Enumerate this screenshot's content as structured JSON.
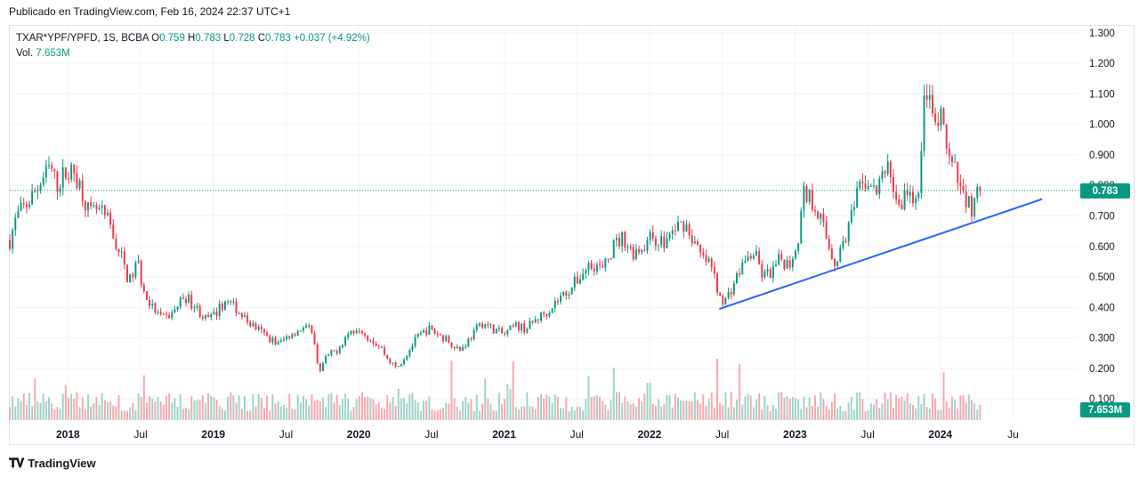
{
  "header": {
    "published": "Publicado en TradingView.com, Feb 16, 2024 22:37 UTC+1"
  },
  "legend": {
    "symbol": "TXAR*YPF/YPFD, 1S, BCBA",
    "open_label": "O",
    "open": "0.759",
    "high_label": "H",
    "high": "0.783",
    "low_label": "L",
    "low": "0.728",
    "close_label": "C",
    "close": "0.783",
    "change": "+0.037 (+4.92%)",
    "volume_label": "Vol.",
    "volume": "7.653M"
  },
  "footer": {
    "logo_text": "TradingView"
  },
  "colors": {
    "up": "#089981",
    "down": "#f23645",
    "trendline": "#2962ff",
    "grid": "#f0f3fa"
  },
  "chart_data": {
    "type": "candlestick",
    "interval": "1 week",
    "y_ticks": [
      "1.300",
      "1.200",
      "1.100",
      "1.000",
      "0.900",
      "0.800",
      "0.700",
      "0.600",
      "0.500",
      "0.400",
      "0.300",
      "0.200",
      "0.100"
    ],
    "x_ticks": [
      {
        "label": "2018",
        "date": 2018.0,
        "bold": true
      },
      {
        "label": "Jul",
        "date": 2018.5,
        "bold": false
      },
      {
        "label": "2019",
        "date": 2019.0,
        "bold": true
      },
      {
        "label": "Jul",
        "date": 2019.5,
        "bold": false
      },
      {
        "label": "2020",
        "date": 2020.0,
        "bold": true
      },
      {
        "label": "Jul",
        "date": 2020.5,
        "bold": false
      },
      {
        "label": "2021",
        "date": 2021.0,
        "bold": true
      },
      {
        "label": "Jul",
        "date": 2021.5,
        "bold": false
      },
      {
        "label": "2022",
        "date": 2022.0,
        "bold": true
      },
      {
        "label": "Jul",
        "date": 2022.5,
        "bold": false
      },
      {
        "label": "2023",
        "date": 2023.0,
        "bold": true
      },
      {
        "label": "Jul",
        "date": 2023.5,
        "bold": false
      },
      {
        "label": "2024",
        "date": 2024.0,
        "bold": true
      },
      {
        "label": "Ju",
        "date": 2024.5,
        "bold": false
      }
    ],
    "x_range": [
      2017.6,
      2024.95
    ],
    "y_range": [
      0.08,
      1.32
    ],
    "last_price": 0.783,
    "last_price_label": "0.783",
    "last_volume_label": "7.653M",
    "price_path": [
      [
        2017.6,
        0.62
      ],
      [
        2017.65,
        0.7
      ],
      [
        2017.72,
        0.74
      ],
      [
        2017.8,
        0.8
      ],
      [
        2017.88,
        0.86
      ],
      [
        2017.92,
        0.8
      ],
      [
        2017.98,
        0.84
      ],
      [
        2018.05,
        0.84
      ],
      [
        2018.1,
        0.78
      ],
      [
        2018.15,
        0.7
      ],
      [
        2018.2,
        0.72
      ],
      [
        2018.28,
        0.68
      ],
      [
        2018.32,
        0.62
      ],
      [
        2018.38,
        0.55
      ],
      [
        2018.42,
        0.48
      ],
      [
        2018.48,
        0.55
      ],
      [
        2018.52,
        0.45
      ],
      [
        2018.58,
        0.4
      ],
      [
        2018.65,
        0.36
      ],
      [
        2018.72,
        0.38
      ],
      [
        2018.8,
        0.44
      ],
      [
        2018.88,
        0.4
      ],
      [
        2018.95,
        0.36
      ],
      [
        2019.0,
        0.37
      ],
      [
        2019.08,
        0.42
      ],
      [
        2019.15,
        0.4
      ],
      [
        2019.22,
        0.36
      ],
      [
        2019.3,
        0.33
      ],
      [
        2019.38,
        0.3
      ],
      [
        2019.45,
        0.28
      ],
      [
        2019.52,
        0.31
      ],
      [
        2019.6,
        0.33
      ],
      [
        2019.68,
        0.33
      ],
      [
        2019.7,
        0.26
      ],
      [
        2019.73,
        0.19
      ],
      [
        2019.78,
        0.24
      ],
      [
        2019.85,
        0.26
      ],
      [
        2019.92,
        0.31
      ],
      [
        2020.0,
        0.34
      ],
      [
        2020.05,
        0.31
      ],
      [
        2020.1,
        0.29
      ],
      [
        2020.15,
        0.27
      ],
      [
        2020.2,
        0.23
      ],
      [
        2020.26,
        0.2
      ],
      [
        2020.32,
        0.24
      ],
      [
        2020.4,
        0.3
      ],
      [
        2020.48,
        0.33
      ],
      [
        2020.55,
        0.31
      ],
      [
        2020.62,
        0.29
      ],
      [
        2020.7,
        0.26
      ],
      [
        2020.78,
        0.31
      ],
      [
        2020.85,
        0.35
      ],
      [
        2020.92,
        0.33
      ],
      [
        2021.0,
        0.31
      ],
      [
        2021.08,
        0.34
      ],
      [
        2021.15,
        0.33
      ],
      [
        2021.22,
        0.36
      ],
      [
        2021.3,
        0.39
      ],
      [
        2021.38,
        0.43
      ],
      [
        2021.45,
        0.46
      ],
      [
        2021.52,
        0.5
      ],
      [
        2021.6,
        0.55
      ],
      [
        2021.68,
        0.52
      ],
      [
        2021.75,
        0.6
      ],
      [
        2021.82,
        0.63
      ],
      [
        2021.88,
        0.58
      ],
      [
        2021.95,
        0.6
      ],
      [
        2022.02,
        0.63
      ],
      [
        2022.1,
        0.61
      ],
      [
        2022.18,
        0.66
      ],
      [
        2022.24,
        0.68
      ],
      [
        2022.3,
        0.62
      ],
      [
        2022.36,
        0.56
      ],
      [
        2022.42,
        0.54
      ],
      [
        2022.48,
        0.44
      ],
      [
        2022.52,
        0.42
      ],
      [
        2022.58,
        0.48
      ],
      [
        2022.65,
        0.55
      ],
      [
        2022.72,
        0.58
      ],
      [
        2022.78,
        0.5
      ],
      [
        2022.85,
        0.52
      ],
      [
        2022.9,
        0.56
      ],
      [
        2022.96,
        0.54
      ],
      [
        2023.02,
        0.62
      ],
      [
        2023.06,
        0.78
      ],
      [
        2023.1,
        0.76
      ],
      [
        2023.16,
        0.72
      ],
      [
        2023.22,
        0.62
      ],
      [
        2023.28,
        0.54
      ],
      [
        2023.32,
        0.6
      ],
      [
        2023.38,
        0.68
      ],
      [
        2023.44,
        0.78
      ],
      [
        2023.5,
        0.82
      ],
      [
        2023.55,
        0.77
      ],
      [
        2023.6,
        0.82
      ],
      [
        2023.64,
        0.88
      ],
      [
        2023.68,
        0.78
      ],
      [
        2023.72,
        0.72
      ],
      [
        2023.78,
        0.8
      ],
      [
        2023.82,
        0.7
      ],
      [
        2023.86,
        0.84
      ],
      [
        2023.9,
        1.15
      ],
      [
        2023.93,
        1.05
      ],
      [
        2023.97,
        0.98
      ],
      [
        2024.0,
        1.02
      ],
      [
        2024.03,
        0.95
      ],
      [
        2024.06,
        0.88
      ],
      [
        2024.1,
        0.84
      ],
      [
        2024.14,
        0.78
      ],
      [
        2024.18,
        0.76
      ],
      [
        2024.22,
        0.72
      ],
      [
        2024.25,
        0.76
      ],
      [
        2024.28,
        0.783
      ]
    ],
    "trendline": {
      "x1": 2022.48,
      "y1": 0.395,
      "x2": 2024.7,
      "y2": 0.755
    }
  }
}
